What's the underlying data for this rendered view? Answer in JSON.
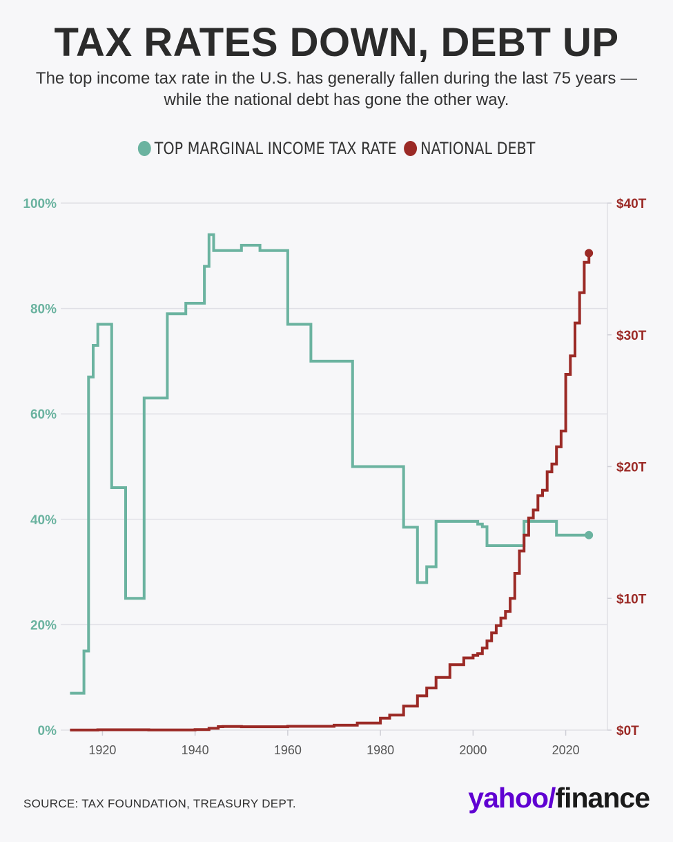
{
  "title": "TAX RATES DOWN, DEBT UP",
  "subtitle": "The top income tax rate in the U.S. has generally fallen during the last 75 years — while the national debt has gone the other way.",
  "legend": {
    "tax_label": "TOP MARGINAL INCOME TAX RATE",
    "debt_label": "NATIONAL DEBT"
  },
  "colors": {
    "tax": "#6bb3a0",
    "debt": "#9b2a26",
    "grid": "#e0e0e6",
    "xaxis_text": "#555555"
  },
  "source": "SOURCE: TAX FOUNDATION, TREASURY DEPT.",
  "logo": {
    "yahoo": "yahoo",
    "slash": "/",
    "finance": "finance"
  },
  "chart_data": {
    "type": "line",
    "step": true,
    "x_range": [
      1911,
      2029
    ],
    "x_ticks": [
      1920,
      1940,
      1960,
      1980,
      2000,
      2020
    ],
    "x_tick_labels": [
      "1920",
      "1940",
      "1960",
      "1980",
      "2000",
      "2020"
    ],
    "left_axis": {
      "range": [
        0,
        100
      ],
      "ticks": [
        0,
        20,
        40,
        60,
        80,
        100
      ],
      "tick_labels": [
        "0%",
        "20%",
        "40%",
        "60%",
        "80%",
        "100%"
      ]
    },
    "right_axis": {
      "range": [
        0,
        40
      ],
      "ticks": [
        0,
        10,
        20,
        30,
        40
      ],
      "tick_labels": [
        "$0T",
        "$10T",
        "$20T",
        "$30T",
        "$40T"
      ]
    },
    "grid": true,
    "series": [
      {
        "name": "TOP MARGINAL INCOME TAX RATE",
        "axis": "left",
        "x": [
          1913,
          1914,
          1916,
          1917,
          1918,
          1919,
          1922,
          1925,
          1929,
          1934,
          1938,
          1942,
          1943,
          1944,
          1946,
          1950,
          1952,
          1954,
          1960,
          1965,
          1974,
          1985,
          1988,
          1990,
          1992,
          2001,
          2002,
          2003,
          2008,
          2011,
          2015,
          2018,
          2025
        ],
        "values": [
          7,
          7,
          15,
          67,
          73,
          77,
          46,
          25,
          63,
          79,
          81,
          88,
          94,
          91,
          91,
          92,
          92,
          91,
          77,
          70,
          50,
          38.5,
          28,
          31,
          39.6,
          39.1,
          38.6,
          35,
          35,
          39.6,
          39.6,
          37,
          37
        ]
      },
      {
        "name": "NATIONAL DEBT",
        "axis": "right",
        "x": [
          1913,
          1917,
          1919,
          1930,
          1940,
          1943,
          1945,
          1946,
          1950,
          1960,
          1970,
          1975,
          1980,
          1982,
          1985,
          1988,
          1990,
          1992,
          1995,
          1998,
          2000,
          2001,
          2002,
          2003,
          2004,
          2005,
          2006,
          2007,
          2008,
          2009,
          2010,
          2011,
          2012,
          2013,
          2014,
          2015,
          2016,
          2017,
          2018,
          2019,
          2020,
          2021,
          2022,
          2023,
          2024,
          2025
        ],
        "values": [
          0.003,
          0.003,
          0.025,
          0.016,
          0.043,
          0.137,
          0.26,
          0.27,
          0.257,
          0.286,
          0.371,
          0.533,
          0.908,
          1.14,
          1.82,
          2.6,
          3.2,
          4.0,
          4.97,
          5.48,
          5.67,
          5.81,
          6.23,
          6.78,
          7.38,
          7.93,
          8.51,
          9.01,
          10.0,
          11.9,
          13.6,
          14.8,
          16.1,
          16.7,
          17.8,
          18.2,
          19.6,
          20.2,
          21.5,
          22.7,
          27.0,
          28.4,
          30.9,
          33.2,
          35.5,
          36.2
        ]
      }
    ]
  }
}
